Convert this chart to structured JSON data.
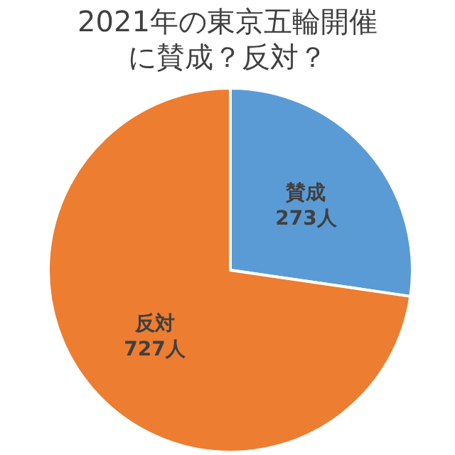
{
  "chart_data": {
    "type": "pie",
    "title": "2021年の東京五輪開催に賛成？反対？",
    "categories": [
      "賛成",
      "反対"
    ],
    "values": [
      273,
      727
    ],
    "value_labels": [
      "273人",
      "727人"
    ],
    "colors": [
      "#5b9bd5",
      "#ed7d31"
    ]
  }
}
